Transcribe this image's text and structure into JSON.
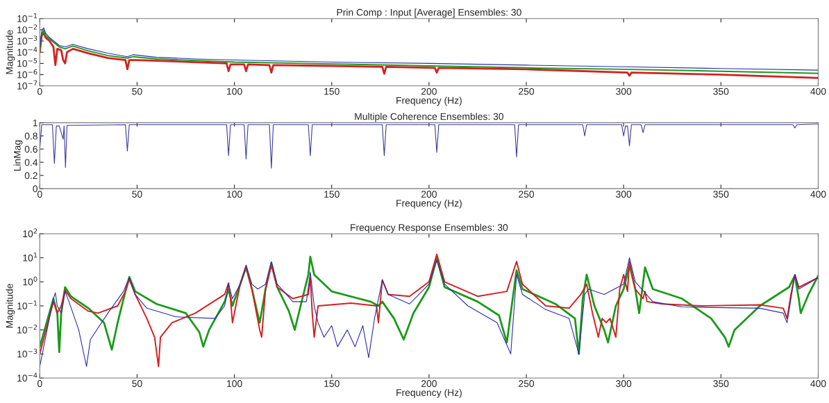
{
  "chart_data": [
    {
      "type": "line",
      "title": "Prin Comp : Input [Average] Ensembles: 30",
      "xlabel": "Frequency (Hz)",
      "ylabel": "Magnitude",
      "log": "y",
      "xlim": [
        0,
        400
      ],
      "xticks": [
        0,
        50,
        100,
        150,
        200,
        250,
        300,
        350,
        400
      ],
      "ylim": [
        1e-07,
        0.1
      ],
      "yticks": [
        {
          "value": 1e-07,
          "label": "10$^{−7}$"
        },
        {
          "value": 1e-06,
          "label": "10$^{−6}$"
        },
        {
          "value": 1e-05,
          "label": "10$^{−5}$"
        },
        {
          "value": 0.0001,
          "label": "10$^{−4}$"
        },
        {
          "value": 0.001,
          "label": "10$^{−3}$"
        },
        {
          "value": 0.01,
          "label": "10$^{−2}$"
        },
        {
          "value": 0.1,
          "label": "10$^{−1}$"
        }
      ],
      "series": [
        {
          "color": "#d42020",
          "x": [
            0,
            1,
            2,
            3,
            5,
            7,
            8,
            9,
            11,
            12,
            13,
            14,
            17,
            25,
            35,
            44,
            45,
            46,
            50,
            70,
            96,
            97,
            98,
            105,
            106,
            107,
            118,
            119,
            120,
            150,
            176,
            177,
            178,
            203,
            204,
            205,
            250,
            302,
            303,
            304,
            350,
            400
          ],
          "values": [
            0.0001,
            0.003,
            0.005,
            0.002,
            0.001,
            0.0003,
            7e-06,
            0.0002,
            0.00015,
            2e-05,
            1e-05,
            0.0001,
            0.0002,
            8e-05,
            3e-05,
            2e-05,
            3e-06,
            2e-05,
            2e-05,
            1.5e-05,
            1e-05,
            2e-06,
            8e-06,
            8e-06,
            2e-06,
            8e-06,
            7e-06,
            1.5e-06,
            7e-06,
            6e-06,
            5e-06,
            1.2e-06,
            5e-06,
            4e-06,
            1.5e-06,
            4e-06,
            3e-06,
            1.5e-06,
            8e-07,
            1.5e-06,
            1e-06,
            5e-07
          ]
        },
        {
          "color": "#1a9a1a",
          "x": [
            0,
            1,
            2,
            3,
            5,
            10,
            13,
            17,
            25,
            35,
            45,
            48,
            60,
            80,
            100,
            150,
            200,
            250,
            300,
            350,
            400
          ],
          "values": [
            0.00015,
            0.005,
            0.008,
            0.003,
            0.0015,
            0.0003,
            0.0002,
            0.00035,
            0.00013,
            5e-05,
            3e-05,
            4e-05,
            2.5e-05,
            1.8e-05,
            1.3e-05,
            9e-06,
            6e-06,
            4e-06,
            3e-06,
            2e-06,
            1.3e-06
          ]
        },
        {
          "color": "#2b2bb0",
          "x": [
            0,
            1,
            2,
            3,
            5,
            10,
            13,
            17,
            25,
            35,
            45,
            48,
            60,
            80,
            100,
            150,
            200,
            250,
            300,
            350,
            400
          ],
          "values": [
            0.0002,
            0.008,
            0.015,
            0.005,
            0.002,
            0.0004,
            0.0003,
            0.0005,
            0.0002,
            8e-05,
            4e-05,
            6e-05,
            3.5e-05,
            2.5e-05,
            2e-05,
            1.3e-05,
            1e-05,
            7e-06,
            5e-06,
            3.5e-06,
            2.5e-06
          ]
        }
      ]
    },
    {
      "type": "line",
      "title": "Multiple Coherence Ensembles: 30",
      "xlabel": "Frequency (Hz)",
      "ylabel": "LinMag",
      "xlim": [
        0,
        400
      ],
      "xticks": [
        0,
        50,
        100,
        150,
        200,
        250,
        300,
        350,
        400
      ],
      "ylim": [
        0,
        1
      ],
      "yticks": [
        0,
        {
          "value": 0.2,
          "label": "0.2"
        },
        {
          "value": 0.4,
          "label": "0.4"
        },
        {
          "value": 0.6,
          "label": "0.6"
        },
        {
          "value": 0.8,
          "label": "0.8"
        },
        1
      ],
      "series": [
        {
          "color": "#3a3aa0",
          "x": [
            0,
            1,
            6.5,
            7.5,
            8.5,
            10,
            12,
            12.5,
            13.2,
            14,
            44,
            45,
            46,
            96,
            97,
            98,
            105,
            106,
            107,
            118,
            119,
            120,
            138,
            139,
            140,
            176,
            177,
            178,
            203,
            204,
            205,
            244,
            245,
            246,
            279,
            280,
            281,
            299,
            300,
            301,
            302,
            303,
            304,
            309,
            310,
            311,
            387,
            388,
            389,
            400
          ],
          "values": [
            0.6,
            0.97,
            0.97,
            0.38,
            0.95,
            0.95,
            0.75,
            0.95,
            0.32,
            0.96,
            0.97,
            0.57,
            0.97,
            0.97,
            0.5,
            0.97,
            0.97,
            0.45,
            0.97,
            0.97,
            0.31,
            0.97,
            0.97,
            0.5,
            0.97,
            0.97,
            0.5,
            0.97,
            0.97,
            0.55,
            0.97,
            0.97,
            0.48,
            0.97,
            0.97,
            0.8,
            0.97,
            0.97,
            0.8,
            0.95,
            0.95,
            0.65,
            0.97,
            0.97,
            0.85,
            0.97,
            0.97,
            0.92,
            0.97,
            0.98
          ]
        }
      ]
    },
    {
      "type": "line",
      "title": "Frequency Response Ensembles: 30",
      "xlabel": "Frequency (Hz)",
      "ylabel": "Magnitude",
      "log": "y",
      "xlim": [
        0,
        400
      ],
      "xticks": [
        0,
        50,
        100,
        150,
        200,
        250,
        300,
        350,
        400
      ],
      "ylim": [
        0.0001,
        100
      ],
      "yticks": [
        {
          "value": 0.0001,
          "label": "10$^{−4}$"
        },
        {
          "value": 0.001,
          "label": "10$^{−3}$"
        },
        {
          "value": 0.01,
          "label": "10$^{−2}$"
        },
        {
          "value": 0.1,
          "label": "10$^{−1}$"
        },
        {
          "value": 1,
          "label": "10$^{0}$"
        },
        {
          "value": 10,
          "label": "10$^{1}$"
        },
        {
          "value": 100,
          "label": "10$^{2}$"
        }
      ],
      "series": [
        {
          "color": "#1a9a1a",
          "x": [
            0,
            7,
            9,
            10,
            11,
            13,
            16,
            25,
            33,
            37,
            40,
            44,
            46,
            49,
            60,
            75,
            82,
            84,
            87,
            95,
            97,
            99,
            103,
            106,
            109,
            113,
            116,
            119,
            122,
            128,
            131,
            134,
            138,
            139,
            141,
            150,
            170,
            174,
            176,
            182,
            187,
            192,
            200,
            204,
            208,
            225,
            236,
            240,
            243,
            245,
            248,
            265,
            275,
            277,
            279,
            281,
            285,
            290,
            292,
            296,
            300,
            303,
            306,
            308,
            311,
            315,
            330,
            345,
            352,
            354,
            357,
            370,
            385,
            388,
            390,
            391,
            395,
            400
          ],
          "values": [
            0.002,
            0.2,
            0.05,
            0.0012,
            0.05,
            0.6,
            0.25,
            0.08,
            0.02,
            0.0015,
            0.02,
            0.4,
            1.6,
            0.4,
            0.12,
            0.05,
            0.008,
            0.002,
            0.01,
            0.15,
            0.5,
            0.1,
            0.8,
            4,
            0.5,
            0.02,
            0.5,
            6,
            0.6,
            0.06,
            0.01,
            0.1,
            2,
            11,
            2,
            0.4,
            0.15,
            0.1,
            0.15,
            0.03,
            0.004,
            0.05,
            0.6,
            10,
            0.6,
            0.15,
            0.04,
            0.003,
            0.2,
            3,
            0.5,
            0.12,
            0.03,
            0.001,
            0.2,
            2,
            0.1,
            0.01,
            0.003,
            0.1,
            0.5,
            5,
            0.5,
            0.05,
            4,
            0.5,
            0.2,
            0.03,
            0.005,
            0.002,
            0.01,
            0.1,
            0.6,
            1.8,
            0.2,
            0.05,
            0.3,
            1.8
          ]
        },
        {
          "color": "#d42020",
          "x": [
            0,
            7,
            9,
            11,
            13,
            16,
            25,
            30,
            40,
            44,
            46,
            49,
            55,
            59,
            61,
            62,
            68,
            80,
            95,
            97,
            98,
            99,
            103,
            106,
            109,
            113,
            114,
            116,
            119,
            122,
            130,
            138,
            139,
            140,
            141,
            143,
            160,
            173,
            174,
            176,
            179,
            190,
            200,
            204,
            208,
            225,
            240,
            245,
            248,
            260,
            272,
            278,
            281,
            284,
            287,
            289,
            291,
            293,
            296,
            298,
            300,
            302,
            303,
            306,
            310,
            311,
            312,
            320,
            340,
            370,
            382,
            384,
            386,
            388,
            390,
            400
          ],
          "values": [
            0.001,
            0.15,
            0.05,
            0.1,
            0.45,
            0.2,
            0.06,
            0.05,
            0.1,
            0.4,
            1.3,
            0.3,
            0.03,
            0.005,
            0.0003,
            0.005,
            0.02,
            0.05,
            0.3,
            0.9,
            0.2,
            0.02,
            0.8,
            4.5,
            0.5,
            0.01,
            0.005,
            0.5,
            5,
            0.6,
            0.2,
            0.3,
            1.5,
            0.05,
            0.005,
            0.1,
            0.13,
            0.1,
            0.02,
            1.2,
            0.3,
            0.25,
            1,
            14,
            1,
            0.25,
            0.4,
            7,
            0.8,
            0.1,
            0.08,
            0.3,
            0.8,
            0.05,
            0.005,
            0.03,
            0.02,
            0.03,
            0.005,
            0.5,
            2,
            0.4,
            7,
            0.5,
            0.2,
            0.4,
            0.15,
            0.12,
            0.1,
            0.11,
            0.08,
            0.03,
            0.3,
            2,
            0.6,
            1.5
          ]
        },
        {
          "color": "#2b2bb0",
          "x": [
            0,
            3,
            7,
            8,
            9,
            11,
            13,
            15,
            20,
            24,
            26,
            35,
            43,
            46,
            49,
            55,
            70,
            90,
            95,
            97,
            99,
            103,
            106,
            109,
            112,
            116,
            119,
            122,
            130,
            137,
            139,
            141,
            143,
            146,
            150,
            153,
            158,
            162,
            166,
            169,
            172,
            176,
            179,
            190,
            200,
            204,
            208,
            220,
            235,
            242,
            245,
            248,
            260,
            272,
            277,
            280,
            282,
            290,
            300,
            303,
            306,
            315,
            330,
            370,
            382,
            384,
            386,
            388,
            390,
            400
          ],
          "values": [
            0.0003,
            0.005,
            0.2,
            0.35,
            0.1,
            0.05,
            0.4,
            0.15,
            0.01,
            0.0003,
            0.004,
            0.05,
            0.4,
            1.5,
            0.3,
            0.08,
            0.035,
            0.03,
            0.1,
            0.8,
            0.2,
            0.8,
            5,
            0.8,
            0.5,
            0.8,
            7,
            0.8,
            0.15,
            0.15,
            2.5,
            0.1,
            0.02,
            0.005,
            0.015,
            0.002,
            0.01,
            0.002,
            0.015,
            0.0007,
            0.03,
            1.2,
            0.3,
            0.12,
            0.8,
            8,
            0.8,
            0.1,
            0.02,
            0.001,
            2,
            0.3,
            0.07,
            0.03,
            0.001,
            0.3,
            0.5,
            0.3,
            0.8,
            10,
            1,
            0.15,
            0.09,
            0.08,
            0.05,
            0.02,
            0.2,
            2,
            0.5,
            1.5
          ]
        }
      ]
    }
  ]
}
